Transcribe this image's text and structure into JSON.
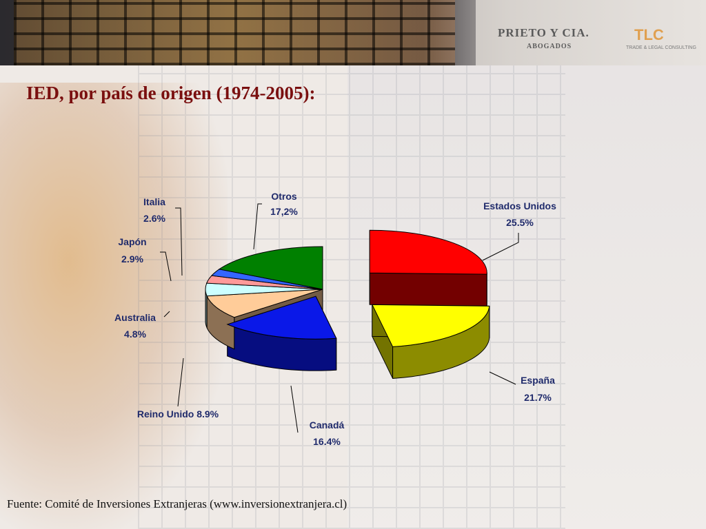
{
  "header": {
    "brand": "PRIETO Y CIA.",
    "brand_sub": "ABOGADOS",
    "partner_logo": "TLC",
    "partner_sub": "TRADE & LEGAL CONSULTING"
  },
  "page_title": "IED, por país de origen (1974-2005):",
  "source": "Fuente: Comité de Inversiones Extranjeras (www.inversionextranjera.cl)",
  "chart_data": {
    "type": "pie",
    "style": "3d-exploded",
    "slices": [
      {
        "name": "Estados Unidos",
        "value": 25.5,
        "label": "25.5%",
        "color": "#ff0000"
      },
      {
        "name": "España",
        "value": 21.7,
        "label": "21.7%",
        "color": "#ffff00"
      },
      {
        "name": "Canadá",
        "value": 16.4,
        "label": "16.4%",
        "color": "#0a18e8"
      },
      {
        "name": "Reino Unido",
        "value": 8.9,
        "label": "8.9%",
        "color": "#ffcc99"
      },
      {
        "name": "Australia",
        "value": 4.8,
        "label": "4.8%",
        "color": "#ccffff"
      },
      {
        "name": "Japón",
        "value": 2.9,
        "label": "2.9%",
        "color": "#ff9999"
      },
      {
        "name": "Italia",
        "value": 2.6,
        "label": "2.6%",
        "color": "#3366ff"
      },
      {
        "name": "Otros",
        "value": 17.2,
        "label": "17,2%",
        "color": "#008000"
      }
    ]
  }
}
